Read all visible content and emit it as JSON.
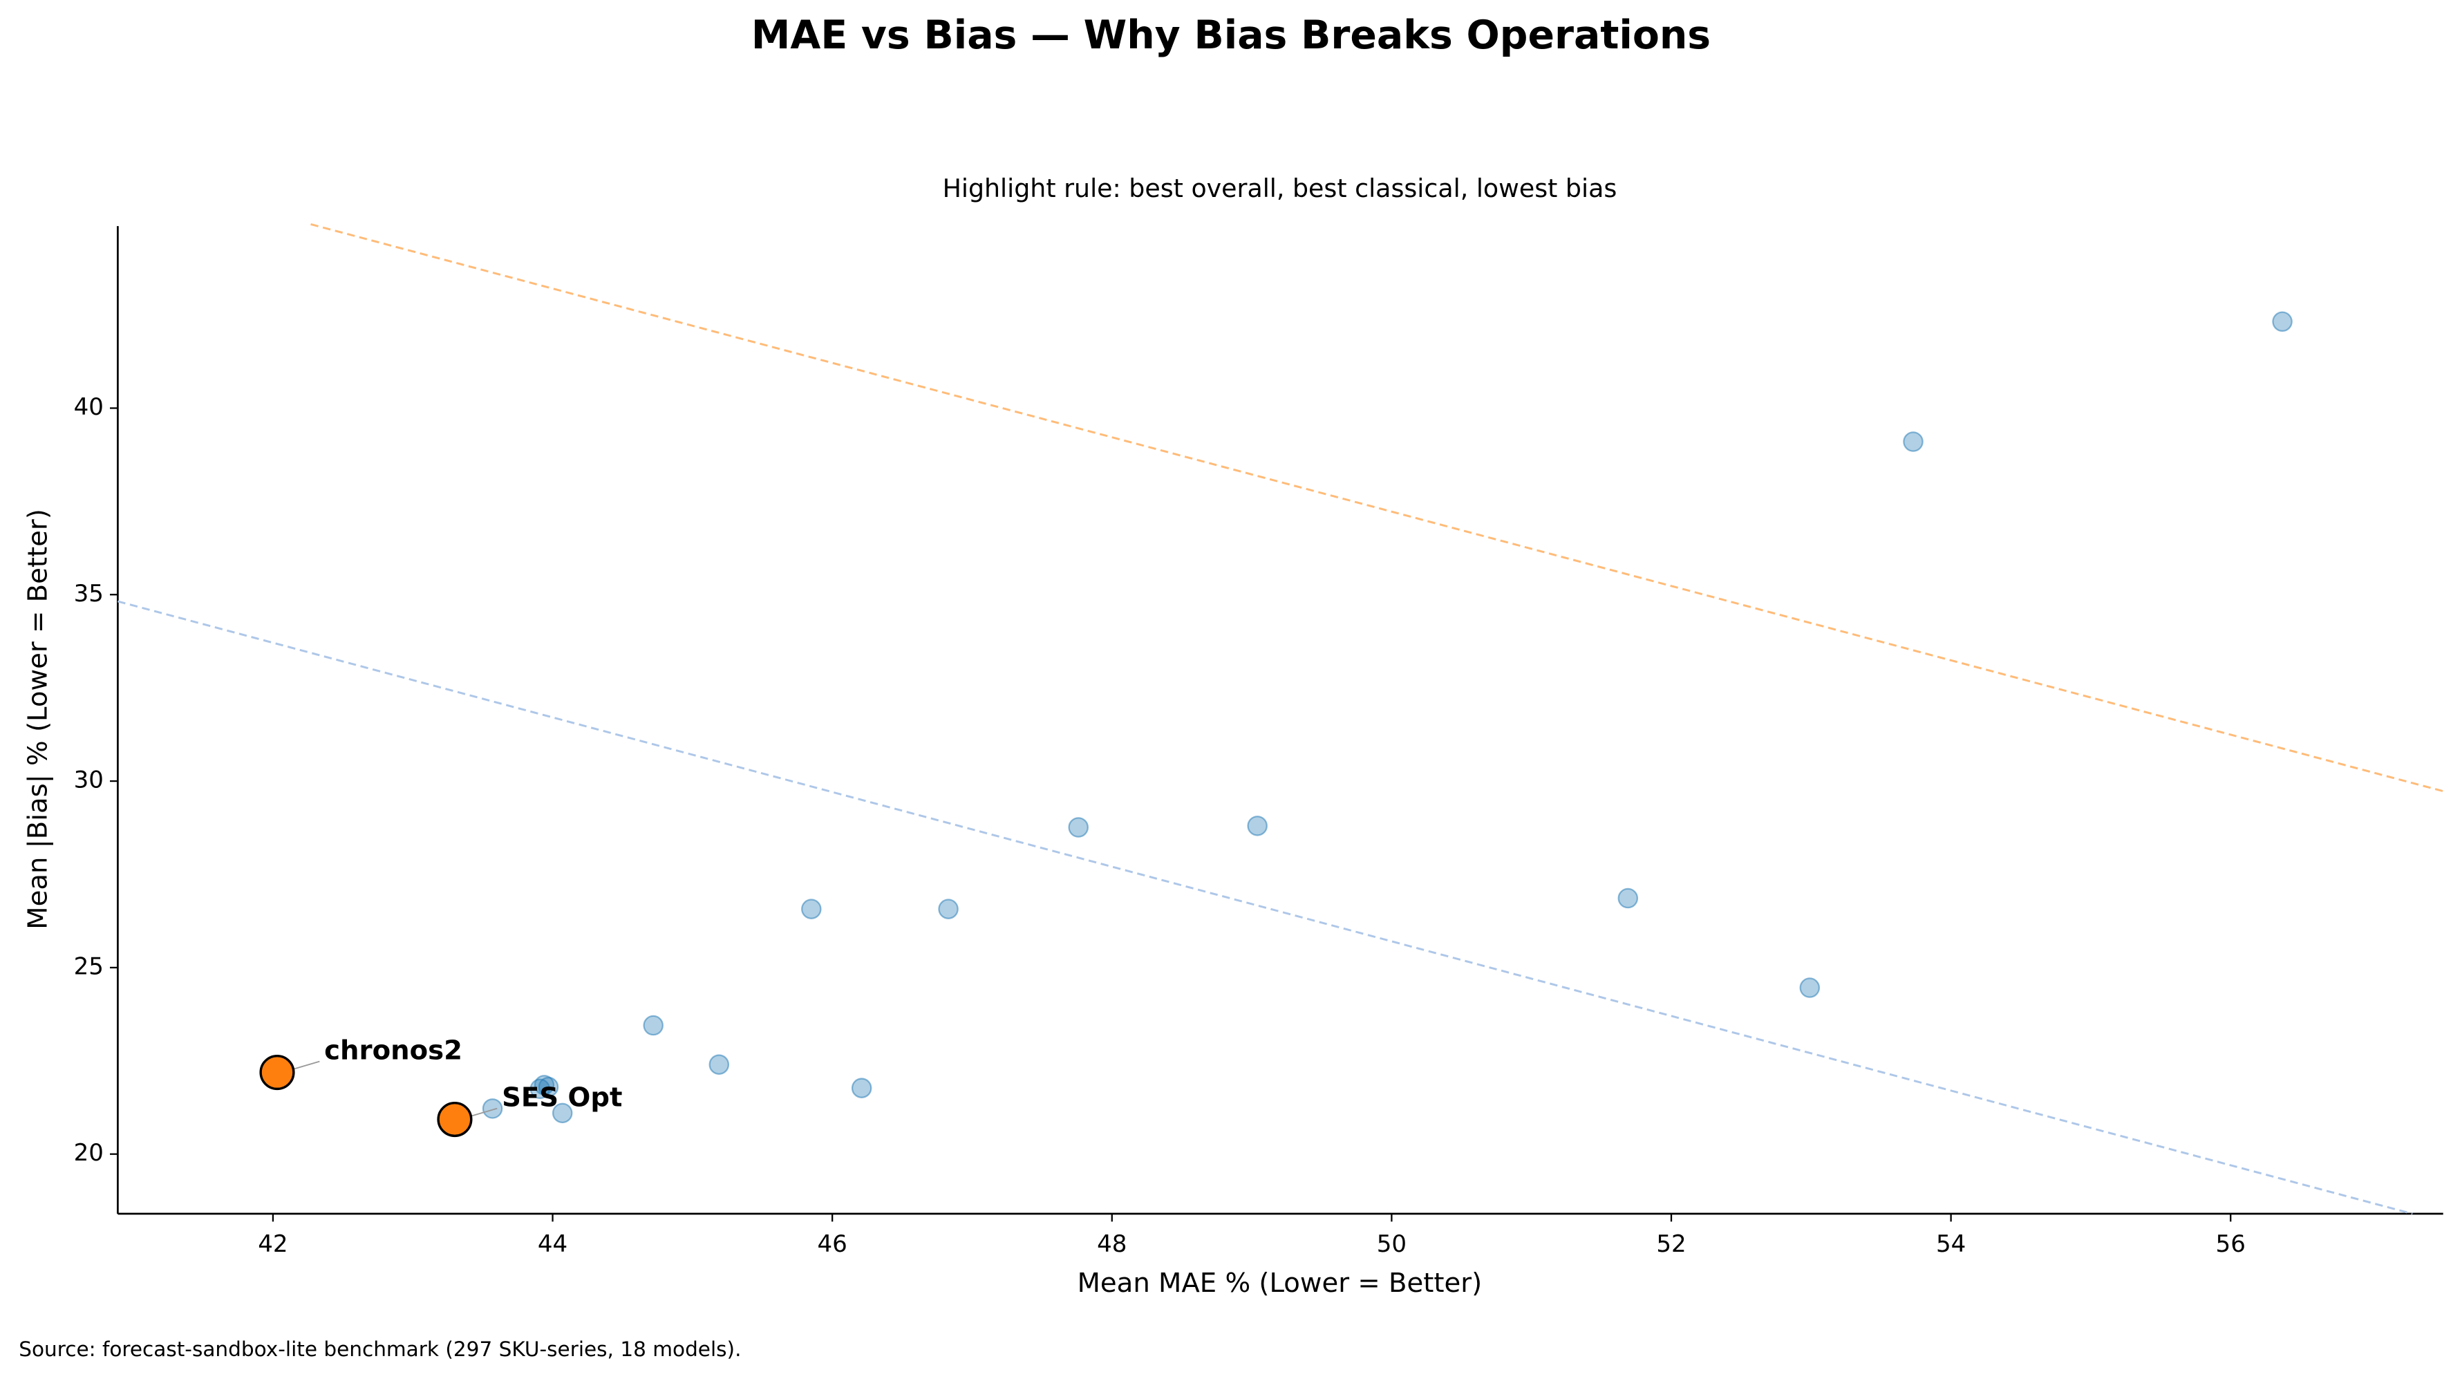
{
  "chart_data": {
    "type": "scatter",
    "title": "MAE vs Bias — Why Bias Breaks Operations",
    "subtitle": "Highlight rule: best overall, best classical, lowest bias",
    "xlabel": "Mean MAE % (Lower = Better)",
    "ylabel": "Mean |Bias| % (Lower = Better)",
    "source": "Source: forecast-sandbox-lite benchmark (297 SKU-series, 18 models).",
    "xlim": [
      40.89,
      57.52
    ],
    "ylim": [
      18.4,
      44.88
    ],
    "xticks": [
      42,
      44,
      46,
      48,
      50,
      52,
      54,
      56
    ],
    "yticks": [
      20,
      25,
      30,
      35,
      40
    ],
    "grid": false,
    "series": [
      {
        "color": "#1f77b4",
        "x": [
          56.37,
          53.73,
          47.76,
          49.04,
          45.85,
          46.83,
          51.69,
          52.99,
          44.72,
          45.19,
          46.21,
          43.94,
          43.97,
          43.91,
          43.57,
          44.07
        ],
        "y": [
          42.32,
          39.1,
          28.76,
          28.8,
          26.57,
          26.57,
          26.86,
          24.46,
          23.45,
          22.4,
          21.77,
          21.85,
          21.8,
          21.75,
          21.22,
          21.1
        ]
      },
      {
        "color": "#ff7f0e",
        "x": [
          42.03,
          43.3
        ],
        "y": [
          22.19,
          20.93
        ],
        "labels": [
          "chronos2",
          "SES Opt"
        ]
      }
    ],
    "reference_lines": [
      {
        "color": "#aec7e8",
        "x": [
          40.89,
          57.3
        ],
        "y": [
          34.82,
          18.4
        ]
      },
      {
        "color": "#ffbb78",
        "x": [
          42.27,
          57.52
        ],
        "y": [
          44.93,
          29.73
        ]
      }
    ]
  }
}
